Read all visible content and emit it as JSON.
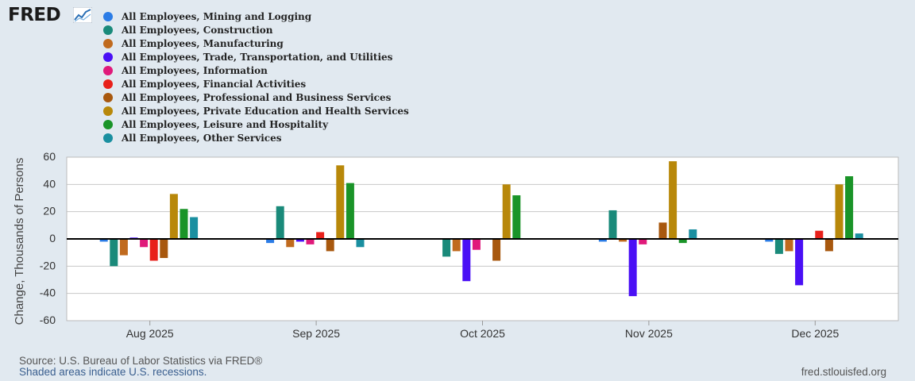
{
  "logo": {
    "text": "FRED",
    "icon": "line-chart-icon"
  },
  "chart_data": {
    "type": "bar",
    "title": "",
    "xlabel": "",
    "ylabel": "Change, Thousands of Persons",
    "ylim": [
      -60,
      60
    ],
    "yticks": [
      "60",
      "40",
      "20",
      "0",
      "-20",
      "-40",
      "-60"
    ],
    "grid": true,
    "legend_position": "top-left",
    "categories": [
      "Aug 2025",
      "Sep 2025",
      "Oct 2025",
      "Nov 2025",
      "Dec 2025"
    ],
    "series": [
      {
        "name": "All Employees, Mining and Logging",
        "color": "#2b7ce6",
        "values": [
          -2,
          -3,
          0,
          -2,
          -2
        ]
      },
      {
        "name": "All Employees, Construction",
        "color": "#1a8a7a",
        "values": [
          -20,
          24,
          -13,
          21,
          -11
        ]
      },
      {
        "name": "All Employees, Manufacturing",
        "color": "#c06a1e",
        "values": [
          -12,
          -6,
          -9,
          -2,
          -9
        ]
      },
      {
        "name": "All Employees, Trade, Transportation, and Utilities",
        "color": "#4a10f5",
        "values": [
          1,
          -2,
          -31,
          -42,
          -34
        ]
      },
      {
        "name": "All Employees, Information",
        "color": "#e0197a",
        "values": [
          -6,
          -4,
          -8,
          -4,
          0
        ]
      },
      {
        "name": "All Employees, Financial Activities",
        "color": "#e8201a",
        "values": [
          -16,
          5,
          0,
          0,
          6
        ]
      },
      {
        "name": "All Employees, Professional and Business Services",
        "color": "#a8580e",
        "values": [
          -14,
          -9,
          -16,
          12,
          -9
        ]
      },
      {
        "name": "All Employees, Private Education and Health Services",
        "color": "#b8880a",
        "values": [
          33,
          54,
          40,
          57,
          40
        ]
      },
      {
        "name": "All Employees, Leisure and Hospitality",
        "color": "#1a9428",
        "values": [
          22,
          41,
          32,
          -3,
          46
        ]
      },
      {
        "name": "All Employees, Other Services",
        "color": "#1a8fa0",
        "values": [
          16,
          -6,
          0,
          7,
          4
        ]
      }
    ]
  },
  "footer": {
    "source": "Source: U.S. Bureau of Labor Statistics via FRED®",
    "recessions": "Shaded areas indicate U.S. recessions.",
    "site": "fred.stlouisfed.org"
  }
}
